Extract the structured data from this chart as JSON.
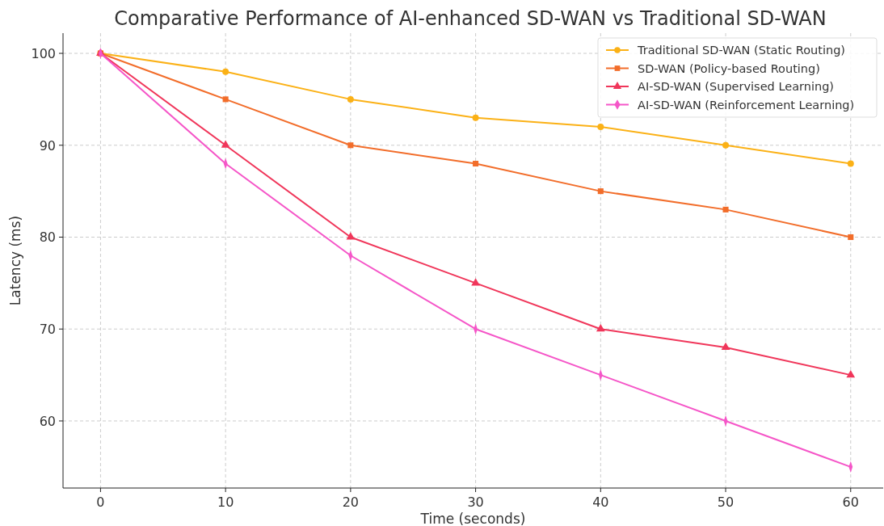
{
  "chart_data": {
    "type": "line",
    "title": "Comparative Performance of AI-enhanced SD-WAN vs Traditional SD-WAN",
    "xlabel": "Time (seconds)",
    "ylabel": "Latency (ms)",
    "x": [
      0,
      10,
      20,
      30,
      40,
      50,
      60
    ],
    "series": [
      {
        "name": "Traditional SD-WAN (Static Routing)",
        "color": "#fbb116",
        "marker": "circle",
        "values": [
          100,
          98,
          95,
          93,
          92,
          90,
          88
        ]
      },
      {
        "name": "SD-WAN (Policy-based Routing)",
        "color": "#f26d2a",
        "marker": "square",
        "values": [
          100,
          95,
          90,
          88,
          85,
          83,
          80
        ]
      },
      {
        "name": "AI-SD-WAN (Supervised Learning)",
        "color": "#f0365a",
        "marker": "triangle",
        "values": [
          100,
          90,
          80,
          75,
          70,
          68,
          65
        ]
      },
      {
        "name": "AI-SD-WAN (Reinforcement Learning)",
        "color": "#f556c8",
        "marker": "diamond",
        "values": [
          100,
          88,
          78,
          70,
          65,
          60,
          55
        ]
      }
    ],
    "xlim": [
      -3,
      62.6
    ],
    "ylim": [
      52.7,
      102.2
    ],
    "xticks": [
      0,
      10,
      20,
      30,
      40,
      50,
      60
    ],
    "yticks": [
      60,
      70,
      80,
      90,
      100
    ],
    "grid": true,
    "legend": "top right",
    "line_style": "solid"
  }
}
